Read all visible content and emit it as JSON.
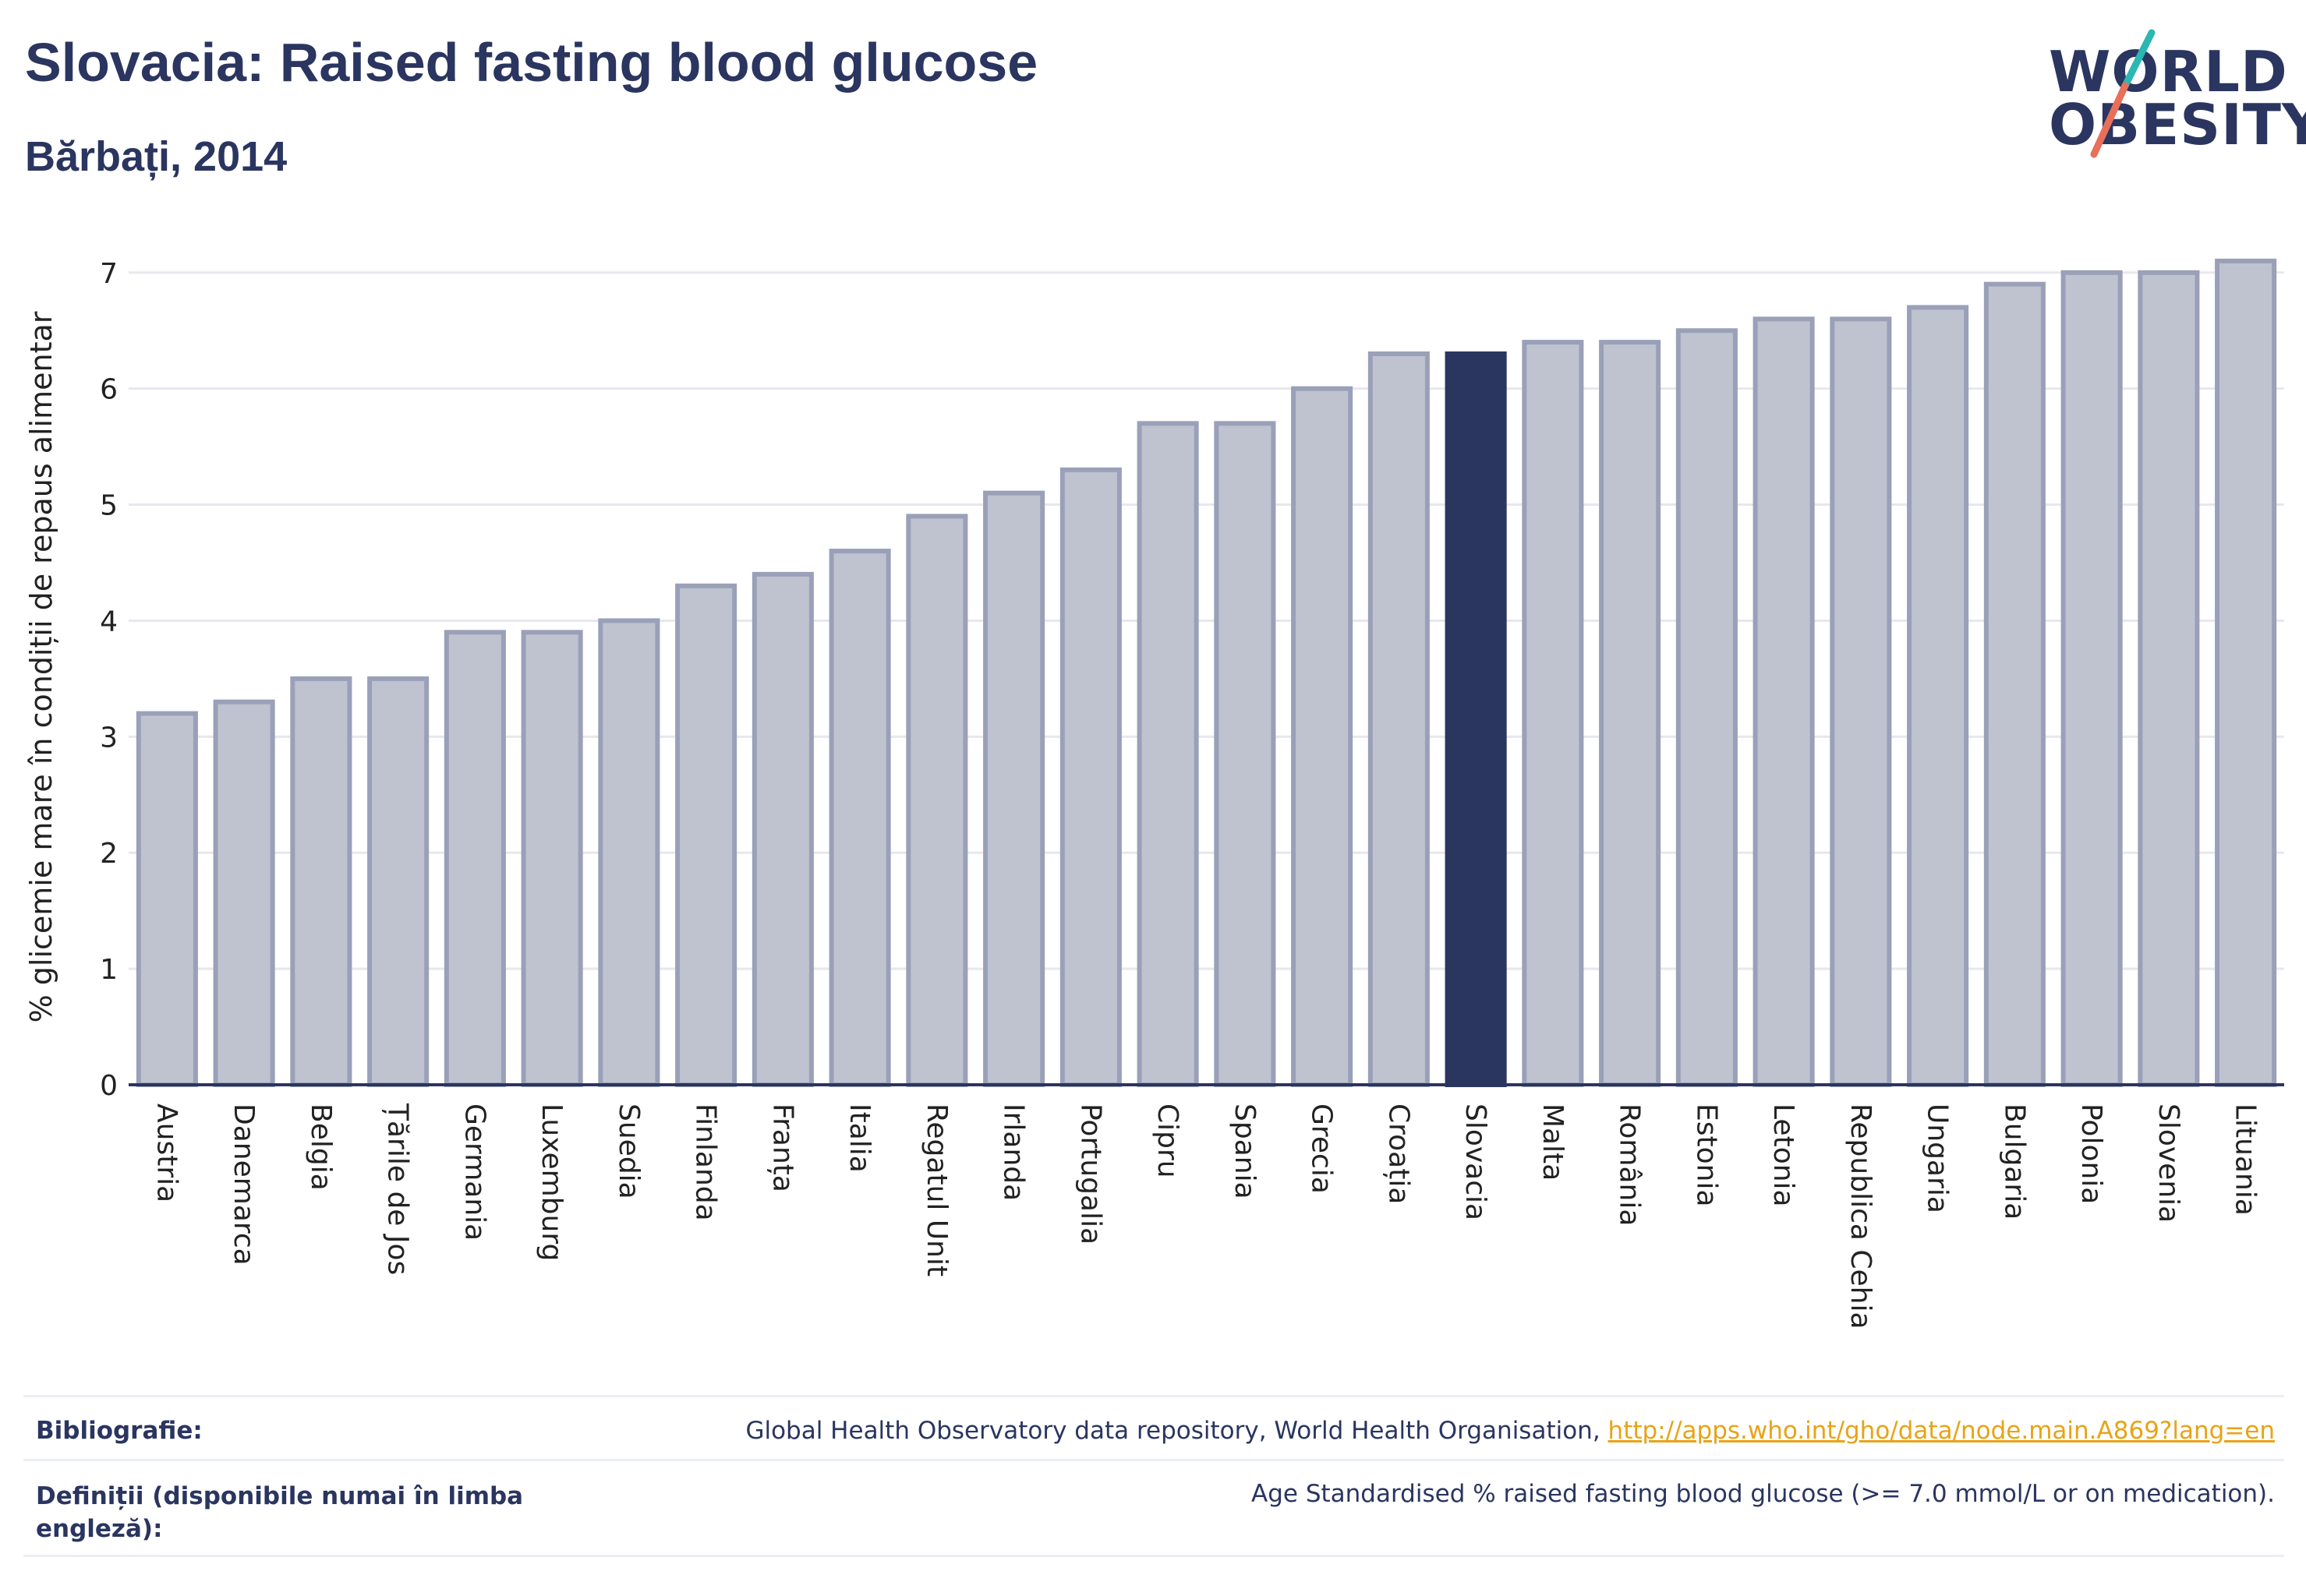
{
  "header": {
    "title": "Slovacia: Raised fasting blood glucose",
    "subtitle": "Bărbați, 2014"
  },
  "logo": {
    "line1": "WORLD",
    "line2": "OBESITY"
  },
  "chart_data": {
    "type": "bar",
    "ylabel": "% glicemie mare în condiții de repaus alimentar",
    "xlabel": "",
    "ylim": [
      0,
      7.2
    ],
    "yticks": [
      0,
      1,
      2,
      3,
      4,
      5,
      6,
      7
    ],
    "grid": true,
    "highlight": "Slovacia",
    "colors": {
      "bar": "#bfc3d0",
      "bar_edge": "#9aa0b8",
      "highlight": "#2a3560",
      "grid": "#e6e8ee",
      "axis": "#2a3560"
    },
    "categories": [
      "Austria",
      "Danemarca",
      "Belgia",
      "Țările de Jos",
      "Germania",
      "Luxemburg",
      "Suedia",
      "Finlanda",
      "Franța",
      "Italia",
      "Regatul Unit",
      "Irlanda",
      "Portugalia",
      "Cipru",
      "Spania",
      "Grecia",
      "Croația",
      "Slovacia",
      "Malta",
      "România",
      "Estonia",
      "Letonia",
      "Republica Cehia",
      "Ungaria",
      "Bulgaria",
      "Polonia",
      "Slovenia",
      "Lituania"
    ],
    "values": [
      3.2,
      3.3,
      3.5,
      3.5,
      3.9,
      3.9,
      4.0,
      4.3,
      4.4,
      4.6,
      4.9,
      5.1,
      5.3,
      5.7,
      5.7,
      6.0,
      6.3,
      6.3,
      6.4,
      6.4,
      6.5,
      6.6,
      6.6,
      6.7,
      6.9,
      7.0,
      7.0,
      7.1
    ]
  },
  "footer": {
    "bibliography_label": "Bibliografie:",
    "bibliography_text": "Global Health Observatory data repository, World Health Organisation, ",
    "bibliography_link": "http://apps.who.int/gho/data/node.main.A869?lang=en",
    "definitions_label_line1": "Definiții (disponibile numai în limba",
    "definitions_label_line2": "engleză):",
    "definitions_text": "Age Standardised % raised fasting blood glucose (>= 7.0 mmol/L or on medication)."
  }
}
